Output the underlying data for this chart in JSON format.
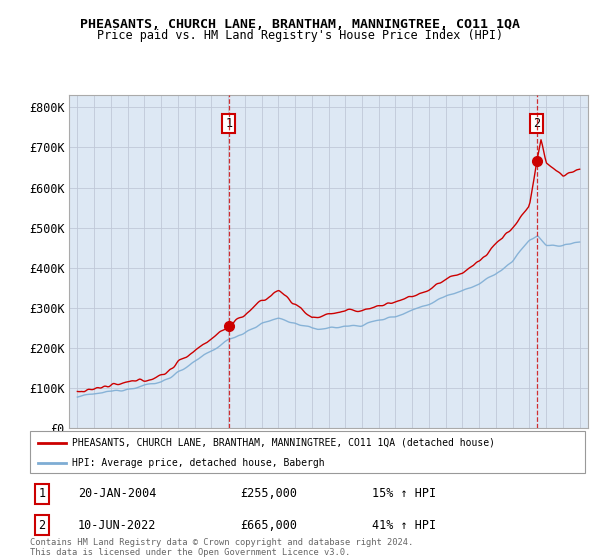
{
  "title": "PHEASANTS, CHURCH LANE, BRANTHAM, MANNINGTREE, CO11 1QA",
  "subtitle": "Price paid vs. HM Land Registry's House Price Index (HPI)",
  "ylabel_ticks": [
    "£0",
    "£100K",
    "£200K",
    "£300K",
    "£400K",
    "£500K",
    "£600K",
    "£700K",
    "£800K"
  ],
  "ytick_values": [
    0,
    100000,
    200000,
    300000,
    400000,
    500000,
    600000,
    700000,
    800000
  ],
  "ylim": [
    0,
    830000
  ],
  "xlim_start": 1994.5,
  "xlim_end": 2025.5,
  "sale1_year": 2004.05,
  "sale1_price": 255000,
  "sale1_label": "1",
  "sale1_date": "20-JAN-2004",
  "sale1_price_str": "£255,000",
  "sale1_hpi": "15% ↑ HPI",
  "sale2_year": 2022.44,
  "sale2_price": 665000,
  "sale2_label": "2",
  "sale2_date": "10-JUN-2022",
  "sale2_price_str": "£665,000",
  "sale2_hpi": "41% ↑ HPI",
  "red_color": "#cc0000",
  "blue_color": "#7eadd4",
  "plot_bg_color": "#dde8f4",
  "legend_property": "PHEASANTS, CHURCH LANE, BRANTHAM, MANNINGTREE, CO11 1QA (detached house)",
  "legend_hpi": "HPI: Average price, detached house, Babergh",
  "footer": "Contains HM Land Registry data © Crown copyright and database right 2024.\nThis data is licensed under the Open Government Licence v3.0.",
  "background_color": "#ffffff",
  "grid_color": "#c0c8d8"
}
